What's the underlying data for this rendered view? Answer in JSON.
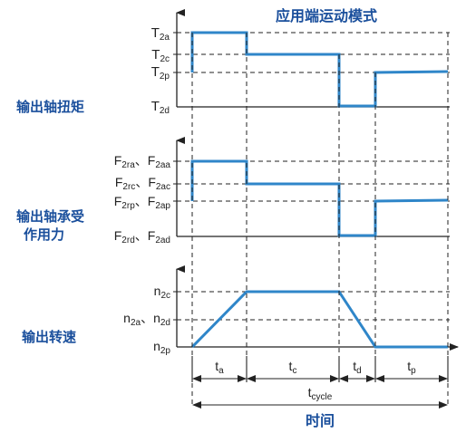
{
  "title": "应用端运动模式",
  "xlabel": "时间",
  "colors": {
    "signal": "#2f86c9",
    "axis": "#222222",
    "label": "#1a4f9c"
  },
  "torque_panel": {
    "label": "输出轴扭矩",
    "levels": [
      {
        "name": "T",
        "sub": "2a"
      },
      {
        "name": "T",
        "sub": "2c"
      },
      {
        "name": "T",
        "sub": "2p"
      },
      {
        "name": "T",
        "sub": "2d"
      }
    ]
  },
  "force_panel": {
    "label_line1": "输出轴承受",
    "label_line2": "作用力",
    "levels": [
      {
        "name1": "F",
        "sub1": "2ra",
        "sep": "、",
        "name2": "F",
        "sub2": "2aa"
      },
      {
        "name1": "F",
        "sub1": "2rc",
        "sep": "、",
        "name2": "F",
        "sub2": "2ac"
      },
      {
        "name1": "F",
        "sub1": "2rp",
        "sep": "、",
        "name2": "F",
        "sub2": "2ap"
      },
      {
        "name1": "F",
        "sub1": "2rd",
        "sep": "、",
        "name2": "F",
        "sub2": "2ad"
      }
    ]
  },
  "speed_panel": {
    "label": "输出转速",
    "levels": [
      {
        "name1": "n",
        "sub1": "2c"
      },
      {
        "name1": "n",
        "sub1": "2a",
        "sep": "、",
        "name2": "n",
        "sub2": "2d"
      },
      {
        "name1": "n",
        "sub1": "2p"
      }
    ]
  },
  "phases": [
    {
      "name": "t",
      "sub": "a"
    },
    {
      "name": "t",
      "sub": "c"
    },
    {
      "name": "t",
      "sub": "d"
    },
    {
      "name": "t",
      "sub": "p"
    }
  ],
  "cycle": {
    "name": "t",
    "sub": "cycle"
  }
}
